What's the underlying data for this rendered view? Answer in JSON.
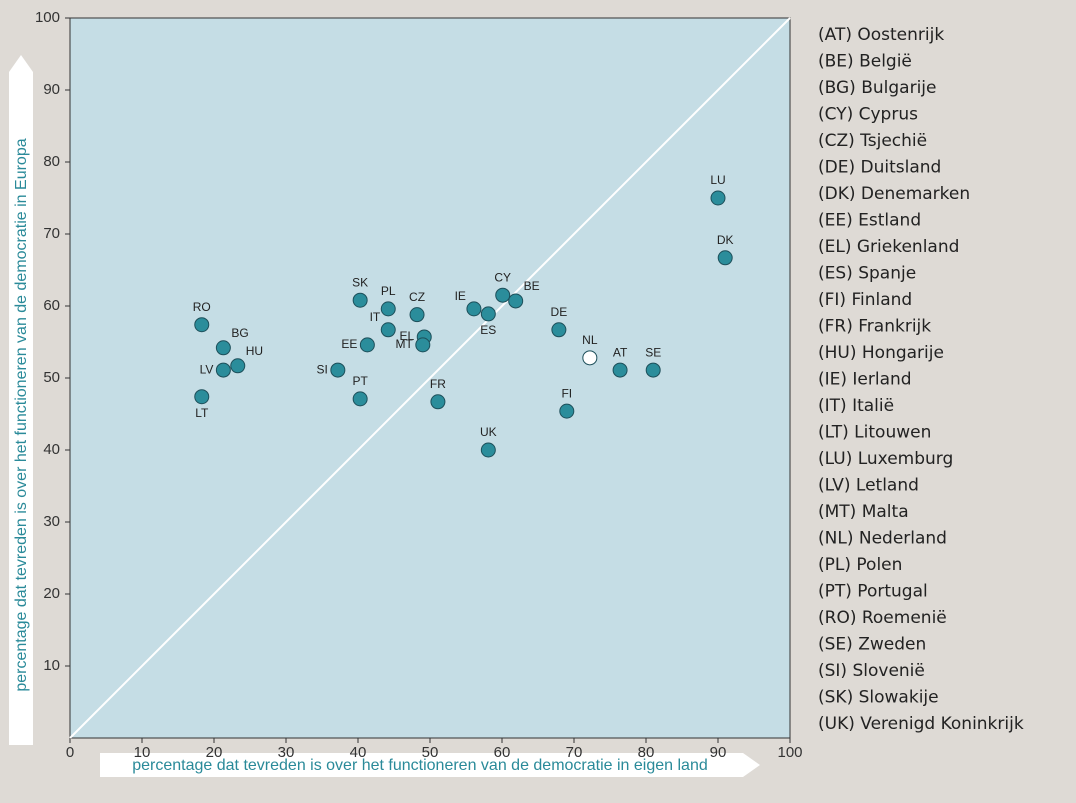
{
  "chart_data": {
    "type": "scatter",
    "xlabel": "percentage dat tevreden is over het functioneren van de democratie in eigen land",
    "ylabel": "percentage dat tevreden is over het functioneren van de democratie in Europa",
    "labels": [
      "RO",
      "BG",
      "HU",
      "LV",
      "LT",
      "SI",
      "PT",
      "EE",
      "SK",
      "IT",
      "PL",
      "CZ",
      "EL",
      "MT",
      "FR",
      "IE",
      "ES",
      "CY",
      "BE",
      "UK",
      "DE",
      "FI",
      "NL",
      "AT",
      "SE",
      "LU",
      "DK"
    ],
    "x": [
      18.3,
      21.3,
      23.3,
      21.3,
      18.3,
      37.2,
      40.3,
      41.3,
      40.3,
      44.2,
      44.2,
      48.2,
      49.2,
      49.0,
      51.1,
      56.1,
      58.1,
      60.1,
      61.9,
      58.1,
      67.9,
      69.0,
      72.2,
      76.4,
      81.0,
      90.0,
      91.0
    ],
    "y": [
      57.4,
      54.2,
      51.7,
      51.1,
      47.4,
      51.1,
      47.1,
      54.6,
      60.8,
      56.7,
      59.6,
      58.8,
      55.7,
      54.6,
      46.7,
      59.6,
      58.9,
      61.5,
      60.7,
      40.0,
      56.7,
      45.4,
      52.8,
      51.1,
      51.1,
      75.0,
      66.7
    ],
    "colors": [
      "#2b8d9b",
      "#2b8d9b",
      "#2b8d9b",
      "#2b8d9b",
      "#2b8d9b",
      "#2b8d9b",
      "#2b8d9b",
      "#2b8d9b",
      "#2b8d9b",
      "#2b8d9b",
      "#2b8d9b",
      "#2b8d9b",
      "#2b8d9b",
      "#2b8d9b",
      "#2b8d9b",
      "#2b8d9b",
      "#2b8d9b",
      "#2b8d9b",
      "#2b8d9b",
      "#2b8d9b",
      "#2b8d9b",
      "#2b8d9b",
      "#ffffff",
      "#2b8d9b",
      "#2b8d9b",
      "#2b8d9b",
      "#2b8d9b"
    ],
    "xlim": [
      0,
      100
    ],
    "ylim": [
      0,
      100
    ],
    "xticks": [
      0,
      10,
      20,
      30,
      40,
      50,
      60,
      70,
      80,
      90,
      100
    ],
    "yticks": [
      10,
      20,
      30,
      40,
      50,
      60,
      70,
      80,
      90,
      100
    ],
    "legend": [
      "(AT) Oostenrijk",
      "(BE) België",
      "(BG) Bulgarije",
      "(CY) Cyprus",
      "(CZ) Tsjechië",
      "(DE) Duitsland",
      "(DK) Denemarken",
      "(EE) Estland",
      "(EL) Griekenland",
      "(ES) Spanje",
      "(FI) Finland",
      "(FR) Frankrijk",
      "(HU) Hongarije",
      "(IE) Ierland",
      "(IT) Italië",
      "(LT) Litouwen",
      "(LU) Luxemburg",
      "(LV) Letland",
      "(MT) Malta",
      "(NL) Nederland",
      "(PL) Polen",
      "(PT) Portugal",
      "(RO) Roemenië",
      "(SE) Zweden",
      "(SI) Slovenië",
      "(SK) Slowakije",
      "(UK) Verenigd Koninkrijk"
    ]
  }
}
